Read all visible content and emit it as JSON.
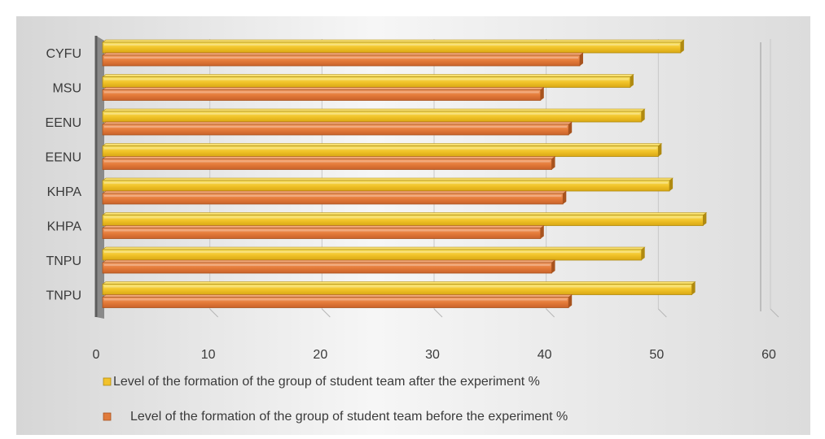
{
  "colors": {
    "panel_light": "#f7f7f7",
    "panel_dark": "#d9d9d9",
    "after_bar": "#f2c22c",
    "after_bar_top": "#f8e070",
    "after_bar_edge": "#b08a10",
    "before_bar": "#e07b3c",
    "before_bar_top": "#f0a878",
    "before_bar_edge": "#a8531e",
    "text": "#3a3a3a",
    "wall": "#7f7f7f"
  },
  "chart_data": {
    "type": "bar",
    "orientation": "horizontal",
    "title": "",
    "categories": [
      "CYFU",
      "MSU",
      "EENU",
      "EENU",
      "KHPA",
      "KHPA",
      "TNPU",
      "TNPU"
    ],
    "series": [
      {
        "name": "Level of the formation of the group of student team after the experiment %",
        "values": [
          52,
          47.5,
          48.5,
          50,
          51,
          54,
          48.5,
          53
        ]
      },
      {
        "name": "Level of the formation of the group of student team before the experiment %",
        "values": [
          43,
          39.5,
          42,
          40.5,
          41.5,
          39.5,
          40.5,
          42
        ]
      }
    ],
    "xlim": [
      0,
      60
    ],
    "x_ticks": [
      "0",
      "10",
      "20",
      "30",
      "40",
      "50",
      "60"
    ],
    "xlabel": "",
    "ylabel": "",
    "grid": true,
    "legend_position": "bottom"
  }
}
